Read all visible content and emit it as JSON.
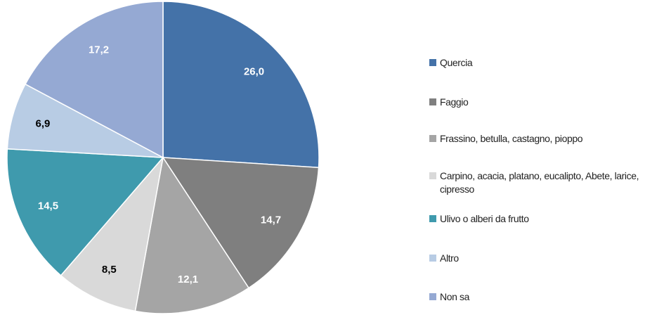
{
  "chart_data": {
    "type": "pie",
    "categories": [
      "Quercia",
      "Faggio",
      "Frassino, betulla, castagno, pioppo",
      "Carpino, acacia, platano, eucalipto, Abete, larice, cipresso",
      "Ulivo o alberi da frutto",
      "Altro",
      "Non sa"
    ],
    "values": [
      26.0,
      14.7,
      12.1,
      8.5,
      14.5,
      6.9,
      17.2
    ],
    "value_labels": [
      "26,0",
      "14,7",
      "12,1",
      "8,5",
      "14,5",
      "6,9",
      "17,2"
    ],
    "colors": [
      "#4472a8",
      "#7f7f7f",
      "#a5a5a5",
      "#d9d9d9",
      "#3f9aad",
      "#b8cce4",
      "#95a9d3"
    ],
    "legend": "right"
  }
}
